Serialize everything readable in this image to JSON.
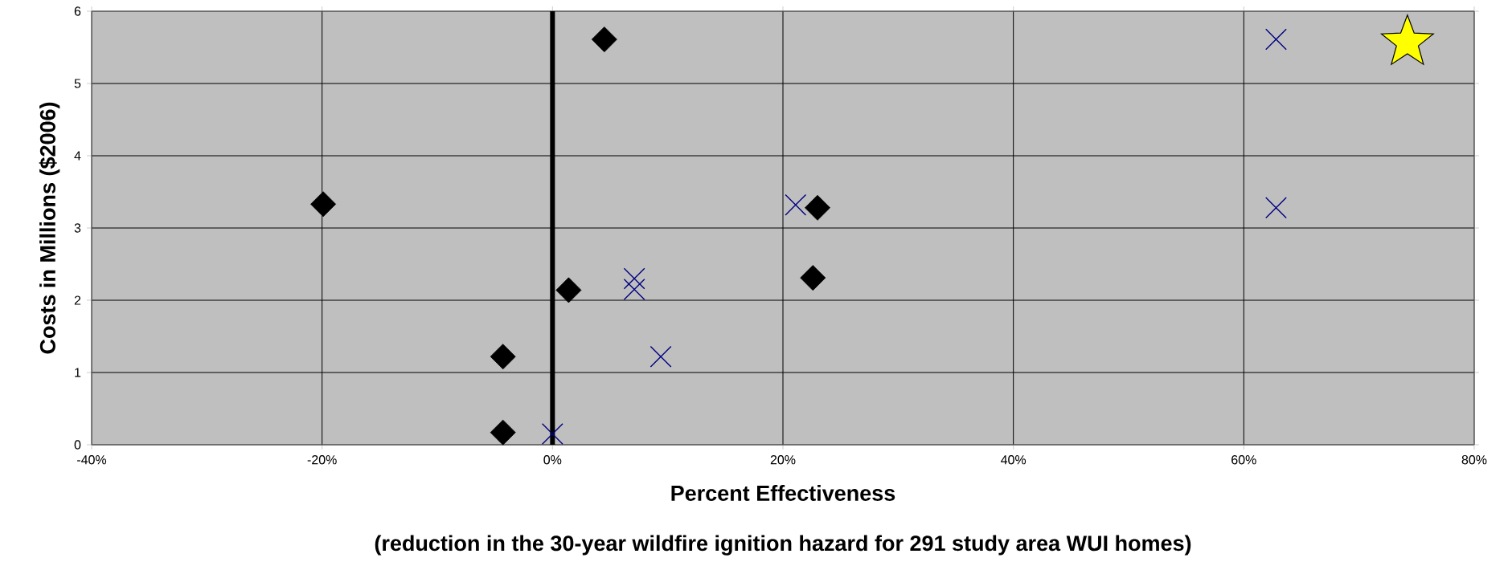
{
  "chart_data": {
    "type": "scatter",
    "xlabel": "Percent Effectiveness",
    "ylabel": "Costs in Millions ($2006)",
    "annotations": [
      "(reduction in the 30-year wildfire ignition hazard for 291 study area WUI homes)"
    ],
    "xlim": [
      -40,
      80
    ],
    "xticks": [
      {
        "value": -40,
        "label": "-40%"
      },
      {
        "value": -20,
        "label": "-20%"
      },
      {
        "value": 0,
        "label": "0%"
      },
      {
        "value": 20,
        "label": "20%"
      },
      {
        "value": 40,
        "label": "40%"
      },
      {
        "value": 60,
        "label": "60%"
      },
      {
        "value": 80,
        "label": "80%"
      }
    ],
    "ylim": [
      0,
      6
    ],
    "yticks": [
      0,
      1,
      2,
      3,
      4,
      5,
      6
    ],
    "grid": true,
    "ref_lines": [
      {
        "axis": "x",
        "value": 0,
        "color": "#000000"
      }
    ],
    "series": [
      {
        "marker": "diamond",
        "color": "#000000",
        "x": [
          -19.9,
          4.5,
          1.4,
          -4.3,
          -4.3,
          23.0,
          22.6
        ],
        "values": [
          3.33,
          5.61,
          2.14,
          1.22,
          0.17,
          3.28,
          2.31
        ]
      },
      {
        "marker": "cross",
        "color": "#000080",
        "x": [
          0,
          7.1,
          7.1,
          9.4,
          21.1,
          62.8,
          62.8
        ],
        "values": [
          0.15,
          2.3,
          2.15,
          1.22,
          3.32,
          5.61,
          3.28
        ]
      },
      {
        "marker": "star",
        "color": "#ffff00",
        "x": [
          74.2
        ],
        "values": [
          5.57
        ]
      }
    ]
  }
}
